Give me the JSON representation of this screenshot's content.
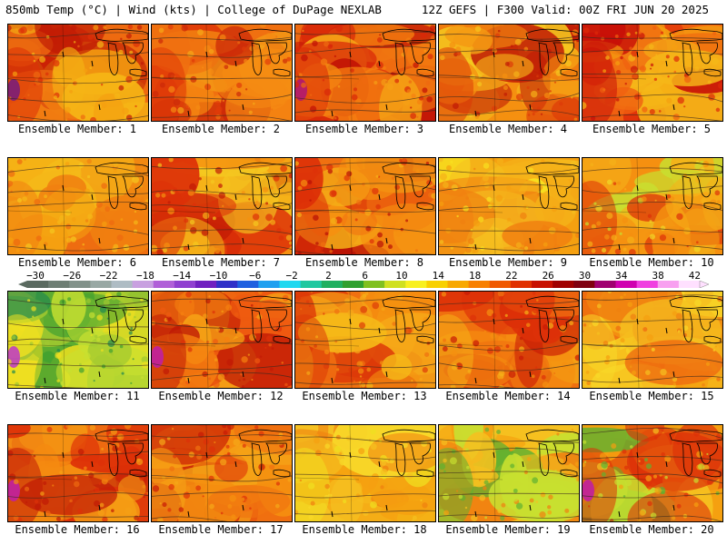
{
  "header": {
    "left": "850mb Temp (°C) | Wind (kts) | College of DuPage NEXLAB",
    "right": "12Z GEFS | F300 Valid: 00Z FRI JUN 20 2025"
  },
  "colorbar": {
    "tick_labels": [
      "−30",
      "−26",
      "−22",
      "−18",
      "−14",
      "−10",
      "−6",
      "−2",
      "2",
      "6",
      "10",
      "14",
      "18",
      "22",
      "26",
      "30",
      "34",
      "38",
      "42"
    ],
    "colors": [
      "#5a6a60",
      "#6e7e74",
      "#82928a",
      "#98a8a4",
      "#aebcc4",
      "#c8a0e0",
      "#b060d8",
      "#9040d0",
      "#7020c0",
      "#3030c8",
      "#2060e0",
      "#20a0f0",
      "#20d8f0",
      "#20c8a0",
      "#20b060",
      "#30a030",
      "#80c020",
      "#d0e020",
      "#f8f020",
      "#f8d000",
      "#f8a800",
      "#f88000",
      "#f05800",
      "#e03000",
      "#c81000",
      "#a00000",
      "#800010",
      "#a00070",
      "#d000b0",
      "#f040e0",
      "#f8a0f0",
      "#ffe0ff"
    ]
  },
  "panels": [
    {
      "label": "Ensemble Member: 1",
      "palette": [
        "#ee6a10",
        "#f5a010",
        "#f5b515",
        "#dd3008",
        "#c01a05"
      ],
      "cold": "#7a1e78"
    },
    {
      "label": "Ensemble Member: 2",
      "palette": [
        "#f07010",
        "#f58a12",
        "#f5a818",
        "#e03a08",
        "#cc2a08"
      ],
      "cold": ""
    },
    {
      "label": "Ensemble Member: 3",
      "palette": [
        "#ee6a10",
        "#f58010",
        "#f5a015",
        "#d82808",
        "#c01005"
      ],
      "cold": "#b01870"
    },
    {
      "label": "Ensemble Member: 4",
      "palette": [
        "#f59010",
        "#f5b018",
        "#f5c820",
        "#dd3a08",
        "#c01a05"
      ],
      "cold": ""
    },
    {
      "label": "Ensemble Member: 5",
      "palette": [
        "#f06010",
        "#f5a010",
        "#dd2a08",
        "#c81008",
        "#f5b818"
      ],
      "cold": ""
    },
    {
      "label": "Ensemble Member: 6",
      "palette": [
        "#f5a010",
        "#f5b818",
        "#f5c820",
        "#f08010",
        "#ee6a10"
      ],
      "cold": ""
    },
    {
      "label": "Ensemble Member: 7",
      "palette": [
        "#f59010",
        "#f5b018",
        "#f5c820",
        "#dd3008",
        "#c01a05"
      ],
      "cold": ""
    },
    {
      "label": "Ensemble Member: 8",
      "palette": [
        "#f07010",
        "#f59010",
        "#f5b018",
        "#dd3008",
        "#b81005"
      ],
      "cold": ""
    },
    {
      "label": "Ensemble Member: 9",
      "palette": [
        "#f5a010",
        "#f5c020",
        "#f8e020",
        "#f08010",
        "#f5b018"
      ],
      "cold": ""
    },
    {
      "label": "Ensemble Member: 10",
      "palette": [
        "#f59010",
        "#f5b018",
        "#f0d828",
        "#dd3008",
        "#c8e030"
      ],
      "cold": ""
    },
    {
      "label": "Ensemble Member: 11",
      "palette": [
        "#a0c830",
        "#c8e030",
        "#40a030",
        "#f0e020",
        "#208850"
      ],
      "cold": "#c040c0"
    },
    {
      "label": "Ensemble Member: 12",
      "palette": [
        "#ee5a10",
        "#f58010",
        "#dd3008",
        "#c01a05",
        "#f5a015"
      ],
      "cold": "#c020a0"
    },
    {
      "label": "Ensemble Member: 13",
      "palette": [
        "#f07010",
        "#f59010",
        "#f5a818",
        "#dd3a08",
        "#f5b818"
      ],
      "cold": ""
    },
    {
      "label": "Ensemble Member: 14",
      "palette": [
        "#f07010",
        "#f59010",
        "#dd3008",
        "#f5b018",
        "#c81a05"
      ],
      "cold": ""
    },
    {
      "label": "Ensemble Member: 15",
      "palette": [
        "#f5a010",
        "#f5c020",
        "#f08010",
        "#f8d828",
        "#ee6a10"
      ],
      "cold": ""
    },
    {
      "label": "Ensemble Member: 16",
      "palette": [
        "#ee6a10",
        "#f58a10",
        "#dd3008",
        "#c01a05",
        "#f5a015"
      ],
      "cold": "#c020a0"
    },
    {
      "label": "Ensemble Member: 17",
      "palette": [
        "#f07010",
        "#f59010",
        "#dd3008",
        "#f5a818",
        "#c81a05"
      ],
      "cold": ""
    },
    {
      "label": "Ensemble Member: 18",
      "palette": [
        "#f5c020",
        "#f8d828",
        "#f5a010",
        "#f0e020",
        "#f08010"
      ],
      "cold": ""
    },
    {
      "label": "Ensemble Member: 19",
      "palette": [
        "#f5c020",
        "#c8e030",
        "#f5a010",
        "#60b030",
        "#f08010"
      ],
      "cold": ""
    },
    {
      "label": "Ensemble Member: 20",
      "palette": [
        "#f5a010",
        "#f5c020",
        "#c8e030",
        "#dd3008",
        "#60b030"
      ],
      "cold": "#c020a0"
    }
  ]
}
